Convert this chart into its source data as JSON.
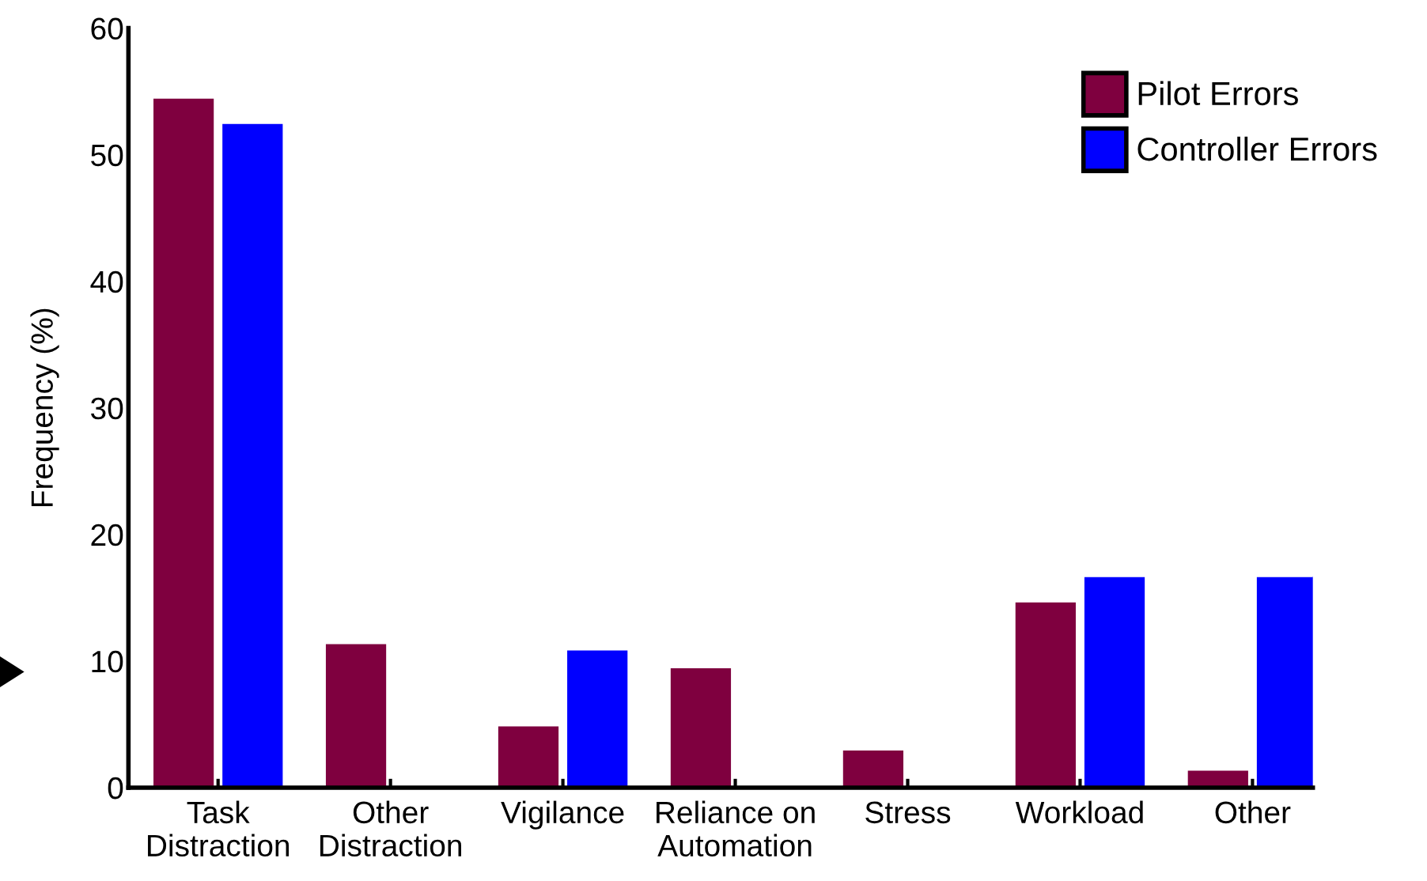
{
  "chart_data": {
    "type": "bar",
    "ylabel": "Frequency (%)",
    "categories": [
      "Task\nDistraction",
      "Other\nDistraction",
      "Vigilance",
      "Reliance on\nAutomation",
      "Stress",
      "Workload",
      "Other"
    ],
    "series": [
      {
        "name": "Pilot Errors",
        "color": "#7f003f",
        "values": [
          54.5,
          11.4,
          4.9,
          9.5,
          3.0,
          14.7,
          1.4
        ]
      },
      {
        "name": "Controller Errors",
        "color": "#0000ff",
        "values": [
          52.5,
          null,
          10.9,
          null,
          null,
          16.7,
          16.7
        ]
      }
    ],
    "ylim": [
      0,
      60
    ],
    "yticks": [
      0,
      10,
      20,
      30,
      40,
      50,
      60
    ],
    "grid": false,
    "legend": "top right"
  }
}
